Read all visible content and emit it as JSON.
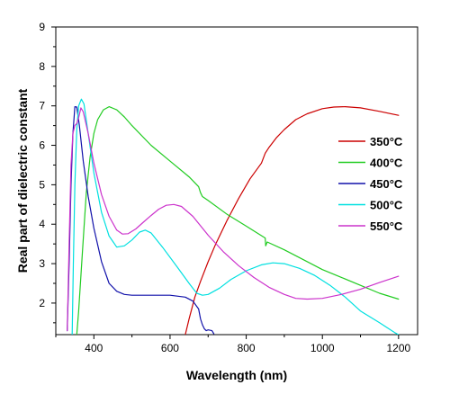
{
  "chart_data": {
    "type": "line",
    "xlabel": "Wavelength  (nm)",
    "ylabel": "Real part of dielectric constant",
    "xlim": [
      300,
      1250
    ],
    "ylim": [
      1.2,
      9
    ],
    "xticks": [
      400,
      600,
      800,
      1000,
      1200
    ],
    "yticks": [
      2,
      3,
      4,
      5,
      6,
      7,
      8,
      9
    ],
    "grid": false,
    "legend_placement": "right",
    "series": [
      {
        "name": "350°C",
        "color": "#cc0000",
        "points": [
          [
            640,
            1.2
          ],
          [
            650,
            1.6
          ],
          [
            665,
            2.15
          ],
          [
            680,
            2.55
          ],
          [
            700,
            3.05
          ],
          [
            720,
            3.5
          ],
          [
            750,
            4.1
          ],
          [
            780,
            4.65
          ],
          [
            810,
            5.15
          ],
          [
            840,
            5.55
          ],
          [
            850,
            5.8
          ],
          [
            860,
            5.95
          ],
          [
            880,
            6.2
          ],
          [
            900,
            6.4
          ],
          [
            930,
            6.65
          ],
          [
            960,
            6.8
          ],
          [
            1000,
            6.93
          ],
          [
            1030,
            6.97
          ],
          [
            1060,
            6.98
          ],
          [
            1100,
            6.95
          ],
          [
            1150,
            6.86
          ],
          [
            1200,
            6.76
          ]
        ]
      },
      {
        "name": "400°C",
        "color": "#22cc22",
        "points": [
          [
            355,
            1.2
          ],
          [
            360,
            1.8
          ],
          [
            370,
            3.3
          ],
          [
            380,
            4.8
          ],
          [
            390,
            5.7
          ],
          [
            400,
            6.3
          ],
          [
            410,
            6.65
          ],
          [
            425,
            6.9
          ],
          [
            440,
            6.98
          ],
          [
            460,
            6.9
          ],
          [
            480,
            6.72
          ],
          [
            500,
            6.5
          ],
          [
            550,
            6.0
          ],
          [
            600,
            5.6
          ],
          [
            650,
            5.2
          ],
          [
            675,
            4.95
          ],
          [
            680,
            4.8
          ],
          [
            685,
            4.7
          ],
          [
            700,
            4.6
          ],
          [
            750,
            4.25
          ],
          [
            800,
            3.95
          ],
          [
            850,
            3.65
          ],
          [
            851,
            3.45
          ],
          [
            855,
            3.55
          ],
          [
            900,
            3.35
          ],
          [
            950,
            3.1
          ],
          [
            1000,
            2.85
          ],
          [
            1050,
            2.65
          ],
          [
            1100,
            2.45
          ],
          [
            1150,
            2.25
          ],
          [
            1200,
            2.1
          ]
        ]
      },
      {
        "name": "450°C",
        "color": "#1111aa",
        "points": [
          [
            330,
            1.3
          ],
          [
            335,
            3.0
          ],
          [
            340,
            5.0
          ],
          [
            345,
            6.3
          ],
          [
            350,
            6.98
          ],
          [
            355,
            6.97
          ],
          [
            362,
            6.5
          ],
          [
            372,
            5.6
          ],
          [
            385,
            4.7
          ],
          [
            400,
            3.9
          ],
          [
            420,
            3.05
          ],
          [
            440,
            2.5
          ],
          [
            460,
            2.3
          ],
          [
            480,
            2.22
          ],
          [
            500,
            2.2
          ],
          [
            550,
            2.2
          ],
          [
            600,
            2.2
          ],
          [
            640,
            2.15
          ],
          [
            660,
            2.05
          ],
          [
            675,
            1.85
          ],
          [
            680,
            1.6
          ],
          [
            685,
            1.45
          ],
          [
            690,
            1.35
          ],
          [
            695,
            1.3
          ],
          [
            700,
            1.32
          ],
          [
            710,
            1.3
          ],
          [
            715,
            1.22
          ]
        ]
      },
      {
        "name": "500°C",
        "color": "#00e0e0",
        "points": [
          [
            343,
            1.2
          ],
          [
            346,
            3.0
          ],
          [
            350,
            5.0
          ],
          [
            355,
            6.4
          ],
          [
            360,
            7.0
          ],
          [
            367,
            7.17
          ],
          [
            374,
            7.05
          ],
          [
            385,
            6.3
          ],
          [
            400,
            5.3
          ],
          [
            420,
            4.3
          ],
          [
            440,
            3.7
          ],
          [
            460,
            3.42
          ],
          [
            480,
            3.45
          ],
          [
            500,
            3.6
          ],
          [
            520,
            3.8
          ],
          [
            535,
            3.85
          ],
          [
            550,
            3.78
          ],
          [
            580,
            3.42
          ],
          [
            620,
            2.9
          ],
          [
            650,
            2.5
          ],
          [
            670,
            2.25
          ],
          [
            685,
            2.2
          ],
          [
            700,
            2.22
          ],
          [
            730,
            2.38
          ],
          [
            760,
            2.6
          ],
          [
            800,
            2.82
          ],
          [
            840,
            2.97
          ],
          [
            870,
            3.02
          ],
          [
            900,
            3.0
          ],
          [
            940,
            2.88
          ],
          [
            980,
            2.7
          ],
          [
            1020,
            2.45
          ],
          [
            1060,
            2.15
          ],
          [
            1100,
            1.8
          ],
          [
            1150,
            1.5
          ],
          [
            1190,
            1.25
          ],
          [
            1200,
            1.2
          ]
        ]
      },
      {
        "name": "550°C",
        "color": "#cc33cc",
        "points": [
          [
            330,
            1.3
          ],
          [
            335,
            3.5
          ],
          [
            340,
            5.5
          ],
          [
            345,
            6.3
          ],
          [
            350,
            6.5
          ],
          [
            355,
            6.55
          ],
          [
            360,
            6.7
          ],
          [
            366,
            6.95
          ],
          [
            372,
            6.85
          ],
          [
            385,
            6.3
          ],
          [
            400,
            5.55
          ],
          [
            420,
            4.75
          ],
          [
            440,
            4.2
          ],
          [
            460,
            3.85
          ],
          [
            475,
            3.75
          ],
          [
            490,
            3.76
          ],
          [
            510,
            3.88
          ],
          [
            530,
            4.05
          ],
          [
            550,
            4.22
          ],
          [
            570,
            4.38
          ],
          [
            590,
            4.48
          ],
          [
            610,
            4.5
          ],
          [
            630,
            4.45
          ],
          [
            660,
            4.2
          ],
          [
            700,
            3.72
          ],
          [
            740,
            3.3
          ],
          [
            780,
            2.95
          ],
          [
            820,
            2.65
          ],
          [
            860,
            2.4
          ],
          [
            900,
            2.22
          ],
          [
            930,
            2.12
          ],
          [
            960,
            2.1
          ],
          [
            1000,
            2.12
          ],
          [
            1050,
            2.22
          ],
          [
            1100,
            2.35
          ],
          [
            1150,
            2.52
          ],
          [
            1200,
            2.68
          ]
        ]
      }
    ]
  }
}
